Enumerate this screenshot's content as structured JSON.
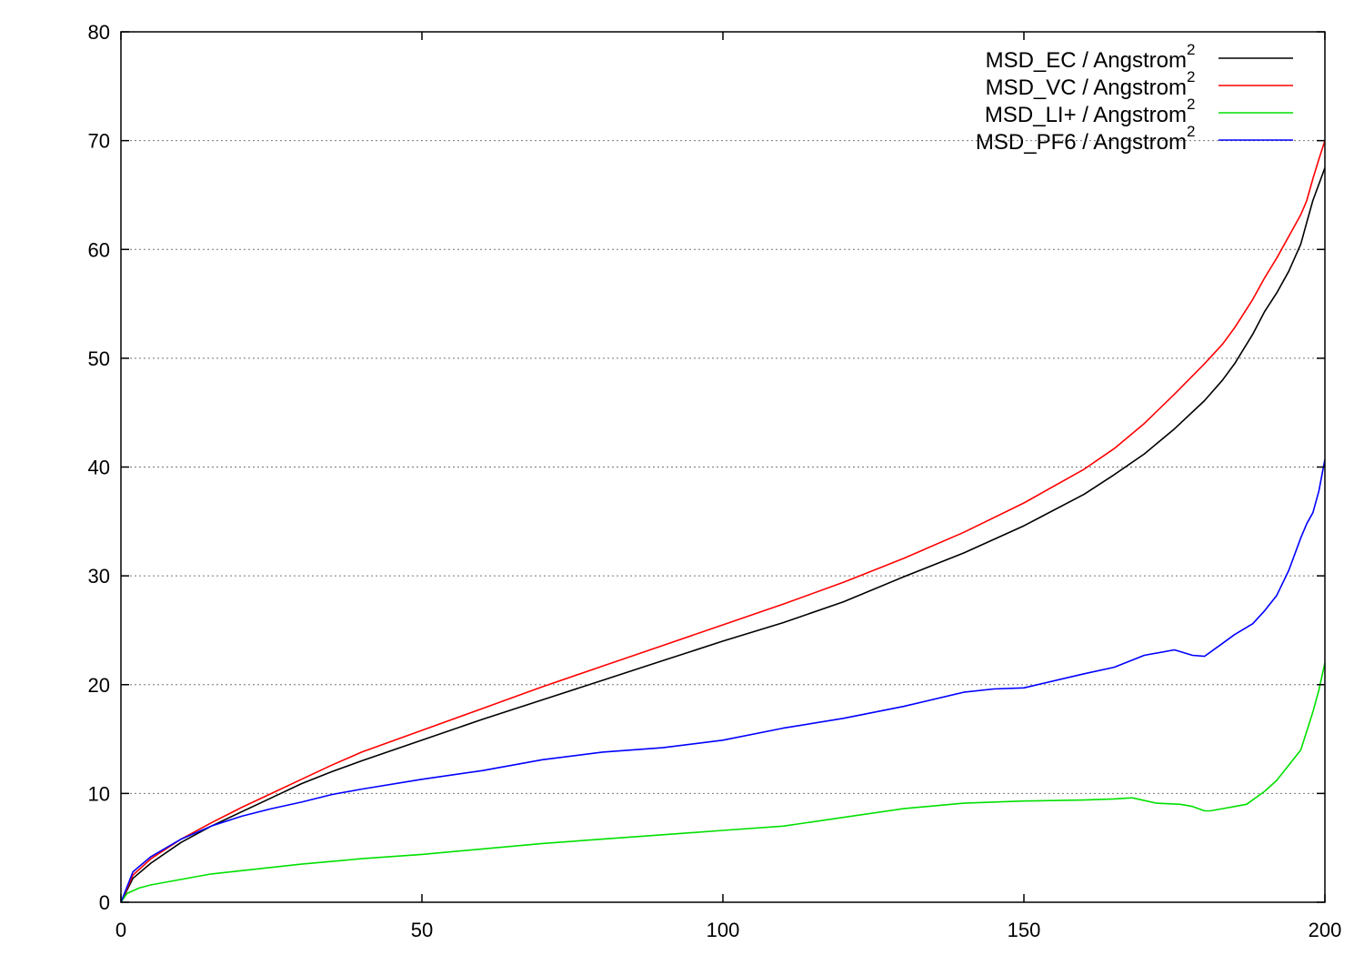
{
  "chart_data": {
    "type": "line",
    "title": "",
    "xlabel": "",
    "ylabel": "",
    "xlim": [
      0,
      200
    ],
    "ylim": [
      0,
      80
    ],
    "x_ticks": [
      0,
      50,
      100,
      150,
      200
    ],
    "y_ticks": [
      0,
      10,
      20,
      30,
      40,
      50,
      60,
      70,
      80
    ],
    "grid": "horizontal dashed",
    "legend_position": "top-right",
    "series": [
      {
        "name": "MSD_EC / Angstrom",
        "name_superscript": "2",
        "color": "#000000",
        "x": [
          0,
          2,
          5,
          10,
          15,
          20,
          25,
          30,
          35,
          40,
          50,
          60,
          70,
          80,
          90,
          100,
          110,
          120,
          130,
          140,
          150,
          160,
          165,
          170,
          175,
          180,
          183,
          185,
          188,
          190,
          192,
          194,
          196,
          197,
          198,
          199,
          200
        ],
        "y": [
          0,
          2.2,
          3.6,
          5.5,
          7.0,
          8.3,
          9.6,
          10.9,
          12.0,
          13.0,
          14.9,
          16.8,
          18.6,
          20.4,
          22.2,
          24.0,
          25.7,
          27.6,
          29.9,
          32.1,
          34.6,
          37.5,
          39.3,
          41.2,
          43.5,
          46.1,
          48.0,
          49.5,
          52.2,
          54.3,
          56.0,
          58.0,
          60.5,
          62.5,
          64.5,
          66.0,
          67.5
        ]
      },
      {
        "name": "MSD_VC / Angstrom",
        "name_superscript": "2",
        "color": "#ff0000",
        "x": [
          0,
          2,
          5,
          10,
          15,
          20,
          25,
          30,
          35,
          40,
          50,
          60,
          70,
          80,
          90,
          100,
          110,
          120,
          130,
          140,
          150,
          160,
          165,
          170,
          175,
          180,
          183,
          185,
          188,
          190,
          192,
          194,
          196,
          197,
          198,
          199,
          200
        ],
        "y": [
          0,
          2.5,
          4.0,
          5.8,
          7.3,
          8.7,
          10.0,
          11.3,
          12.6,
          13.8,
          15.8,
          17.8,
          19.8,
          21.7,
          23.6,
          25.5,
          27.4,
          29.4,
          31.6,
          34.0,
          36.7,
          39.8,
          41.7,
          44.0,
          46.7,
          49.5,
          51.3,
          52.8,
          55.4,
          57.4,
          59.2,
          61.2,
          63.2,
          64.5,
          66.5,
          68.3,
          70.0
        ]
      },
      {
        "name": "MSD_LI+ / Angstrom",
        "name_superscript": "2",
        "color": "#00e000",
        "x": [
          0,
          1,
          3,
          5,
          10,
          15,
          20,
          30,
          40,
          50,
          60,
          70,
          80,
          90,
          100,
          110,
          120,
          130,
          140,
          150,
          160,
          165,
          168,
          172,
          176,
          178,
          180,
          181,
          183,
          185,
          187,
          190,
          192,
          194,
          196,
          198,
          199,
          200
        ],
        "y": [
          0,
          0.8,
          1.3,
          1.6,
          2.1,
          2.6,
          2.9,
          3.5,
          4.0,
          4.4,
          4.9,
          5.4,
          5.8,
          6.2,
          6.6,
          7.0,
          7.8,
          8.6,
          9.1,
          9.3,
          9.4,
          9.5,
          9.6,
          9.1,
          9.0,
          8.8,
          8.4,
          8.4,
          8.6,
          8.8,
          9.0,
          10.2,
          11.2,
          12.6,
          14.0,
          17.5,
          19.5,
          22.0
        ]
      },
      {
        "name": "MSD_PF6 / Angstrom",
        "name_superscript": "2",
        "color": "#0000ff",
        "x": [
          0,
          2,
          5,
          10,
          15,
          20,
          25,
          30,
          35,
          40,
          50,
          60,
          70,
          80,
          90,
          100,
          110,
          120,
          130,
          140,
          145,
          150,
          160,
          165,
          170,
          175,
          178,
          180,
          183,
          185,
          188,
          190,
          192,
          194,
          196,
          197,
          198,
          199,
          200
        ],
        "y": [
          0,
          2.8,
          4.2,
          5.8,
          7.0,
          7.9,
          8.6,
          9.2,
          9.9,
          10.4,
          11.3,
          12.1,
          13.1,
          13.8,
          14.2,
          14.9,
          16.0,
          16.9,
          18.0,
          19.3,
          19.6,
          19.7,
          21.0,
          21.6,
          22.7,
          23.2,
          22.7,
          22.6,
          23.8,
          24.6,
          25.6,
          26.8,
          28.2,
          30.5,
          33.5,
          34.8,
          35.8,
          37.8,
          40.7
        ]
      }
    ]
  }
}
